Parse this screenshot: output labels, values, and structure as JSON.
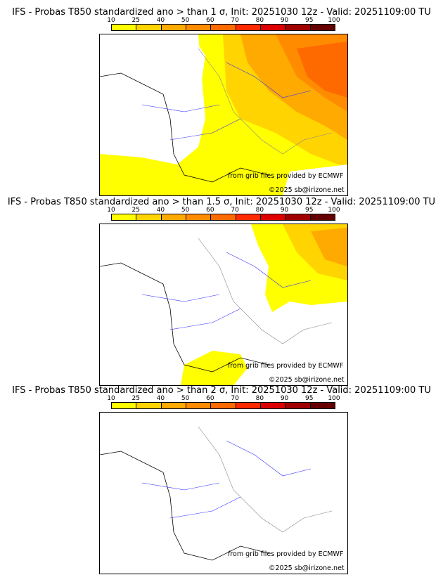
{
  "colorbar": {
    "ticks": [
      "10",
      "25",
      "40",
      "50",
      "60",
      "70",
      "80",
      "90",
      "95",
      "100"
    ],
    "colors": [
      "#ffff00",
      "#ffd400",
      "#ffaa00",
      "#ff8c00",
      "#ff6a00",
      "#ff2a00",
      "#dd0000",
      "#a00000",
      "#660000"
    ]
  },
  "panels": [
    {
      "title": "IFS - Probas T850  standardized ano > than 1 σ, Init: 20251030 12z - Valid: 20251109:00 TU"
    },
    {
      "title": "IFS - Probas T850  standardized ano > than 1.5 σ, Init: 20251030 12z - Valid: 20251109:00 TU"
    },
    {
      "title": "IFS - Probas T850  standardized ano > than 2 σ, Init: 20251030 12z - Valid: 20251109:00 TU"
    }
  ],
  "credits": {
    "source": "from grib files provided by ECMWF",
    "copyright": "©2025 sb@irizone.net"
  }
}
